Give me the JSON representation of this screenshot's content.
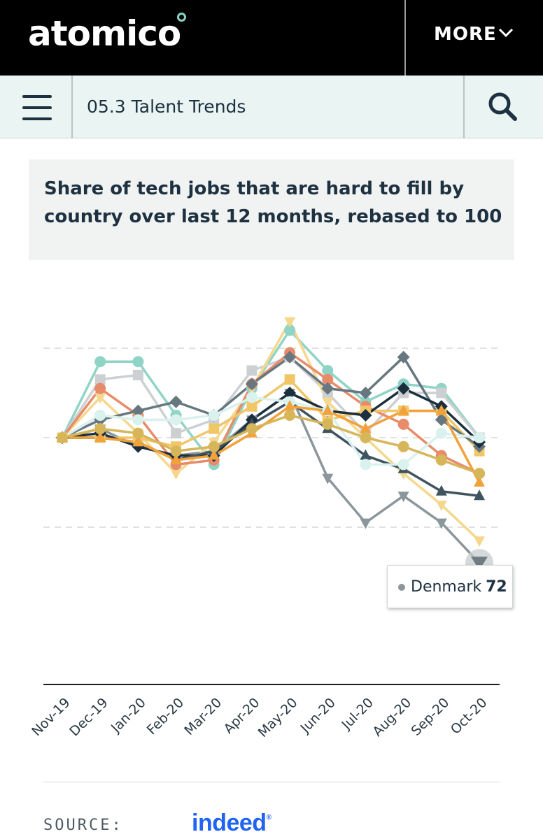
{
  "header": {
    "logo_text": "atomico",
    "more_label": "MORE"
  },
  "subnav": {
    "breadcrumb": "05.3 Talent Trends"
  },
  "tooltip": {
    "label": "Denmark",
    "value": "72"
  },
  "source": {
    "label": "SOURCE:",
    "logo_text": "indeed"
  },
  "icons": [
    "menu-icon",
    "search-icon",
    "chevron-down-icon"
  ],
  "colors": {
    "header_bg": "#000000",
    "subnav_bg": "#eaf4f2",
    "title_bg": "#f1f3f3",
    "text_dark": "#1d3140",
    "indeed_blue": "#2164f3",
    "logo_accent": "#8ad3c6"
  },
  "chart_data": {
    "type": "line",
    "title": "Share of tech jobs that are hard to fill by country over last 12 months, rebased to 100",
    "categories": [
      "Nov-19",
      "Dec-19",
      "Jan-20",
      "Feb-20",
      "Mar-20",
      "Apr-20",
      "May-20",
      "Jun-20",
      "Jul-20",
      "Aug-20",
      "Sep-20",
      "Oct-20"
    ],
    "ylim": [
      65,
      125
    ],
    "grid_values": [
      80,
      100,
      120
    ],
    "grid": true,
    "highlighted_point": {
      "series_index": 0,
      "category": "Oct-20",
      "value": 72
    },
    "series": [
      {
        "name": "Denmark",
        "color": "#8b979b",
        "marker": "triangle-down",
        "values": [
          100,
          102,
          98,
          96,
          97,
          104,
          110,
          91,
          81,
          87,
          81,
          72
        ]
      },
      {
        "name": "",
        "color": "#8fd4c6",
        "marker": "circle",
        "values": [
          100,
          117,
          117,
          105,
          94,
          111,
          124,
          115,
          108,
          112,
          111,
          100
        ]
      },
      {
        "name": "",
        "color": "#cdd0d3",
        "marker": "square",
        "values": [
          100,
          113,
          114,
          101,
          104,
          115,
          118,
          110,
          101,
          110,
          110,
          100
        ]
      },
      {
        "name": "",
        "color": "#f5d88d",
        "marker": "triangle-down",
        "values": [
          100,
          109,
          101,
          92,
          99,
          111,
          126,
          108,
          100,
          92,
          85,
          77
        ]
      },
      {
        "name": "",
        "color": "#e88b6a",
        "marker": "circle",
        "values": [
          100,
          111,
          105,
          94,
          95,
          112,
          119,
          113,
          107,
          103,
          96,
          92
        ]
      },
      {
        "name": "",
        "color": "#f0c667",
        "marker": "square",
        "values": [
          100,
          100,
          100,
          98,
          102,
          107,
          113,
          104,
          106,
          106,
          106,
          97
        ]
      },
      {
        "name": "",
        "color": "#67777f",
        "marker": "diamond",
        "values": [
          100,
          104,
          106,
          108,
          105,
          112,
          118,
          111,
          110,
          118,
          104,
          98
        ]
      },
      {
        "name": "",
        "color": "#1b2f3f",
        "marker": "diamond",
        "values": [
          100,
          101,
          98,
          96,
          96,
          104,
          110,
          106,
          105,
          111,
          107,
          99
        ]
      },
      {
        "name": "",
        "color": "#3f545f",
        "marker": "triangle-up",
        "values": [
          100,
          100,
          99,
          95,
          97,
          103,
          108,
          102,
          96,
          93,
          88,
          87
        ]
      },
      {
        "name": "",
        "color": "#d9f2ee",
        "marker": "circle",
        "values": [
          100,
          105,
          104,
          104,
          105,
          109,
          108,
          106,
          94,
          94,
          101,
          100
        ]
      },
      {
        "name": "",
        "color": "#f2a13b",
        "marker": "triangle-up",
        "values": [
          100,
          100,
          99,
          95,
          96,
          101,
          107,
          106,
          102,
          106,
          106,
          90
        ]
      },
      {
        "name": "",
        "color": "#d7b65a",
        "marker": "circle",
        "values": [
          100,
          102,
          101,
          97,
          98,
          102,
          105,
          103,
          100,
          98,
          95,
          92
        ]
      }
    ]
  }
}
